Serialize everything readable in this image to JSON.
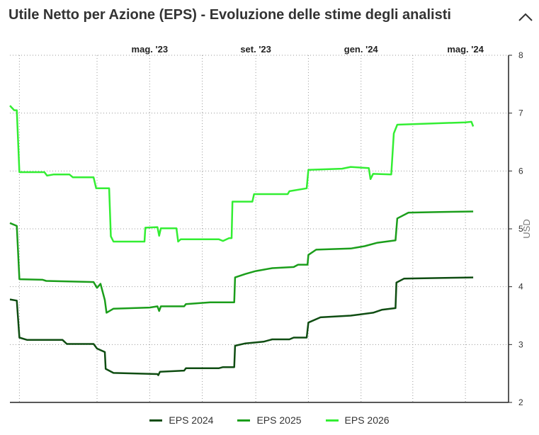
{
  "header": {
    "title": "Utile Netto per Azione (EPS) - Evoluzione delle stime degli analisti"
  },
  "icons": {
    "collapse": "chevron-up-icon"
  },
  "colors": {
    "grid": "#9a9a9a",
    "axis": "#222222",
    "EPS 2024": "#0f4d12",
    "EPS 2025": "#1b9e1b",
    "EPS 2026": "#33ee33"
  },
  "chart_data": {
    "type": "line",
    "xlabel": "",
    "ylabel": "USD",
    "ylim": [
      2,
      8
    ],
    "y_ticks": [
      2,
      3,
      4,
      5,
      6,
      7,
      8
    ],
    "x_ticks": [
      {
        "label": "mag. '23",
        "date": "2023-05-01"
      },
      {
        "label": "set. '23",
        "date": "2023-09-01"
      },
      {
        "label": "gen. '24",
        "date": "2024-01-01"
      },
      {
        "label": "mag. '24",
        "date": "2024-05-01"
      }
    ],
    "xlim": [
      "2022-11-20",
      "2024-06-20"
    ],
    "x_axis_position": "top",
    "y_axis_position": "right",
    "grid": true,
    "legend": "bottom",
    "series": [
      {
        "name": "EPS 2024",
        "points": [
          [
            "2022-11-20",
            3.78
          ],
          [
            "2022-11-28",
            3.76
          ],
          [
            "2022-12-01",
            3.12
          ],
          [
            "2022-12-10",
            3.08
          ],
          [
            "2023-01-20",
            3.08
          ],
          [
            "2023-01-25",
            3.01
          ],
          [
            "2023-02-25",
            3.01
          ],
          [
            "2023-03-01",
            2.93
          ],
          [
            "2023-03-10",
            2.87
          ],
          [
            "2023-03-11",
            2.58
          ],
          [
            "2023-03-20",
            2.51
          ],
          [
            "2023-05-10",
            2.49
          ],
          [
            "2023-05-11",
            2.47
          ],
          [
            "2023-05-13",
            2.53
          ],
          [
            "2023-06-10",
            2.55
          ],
          [
            "2023-06-12",
            2.59
          ],
          [
            "2023-07-20",
            2.59
          ],
          [
            "2023-07-25",
            2.61
          ],
          [
            "2023-08-07",
            2.61
          ],
          [
            "2023-08-08",
            2.98
          ],
          [
            "2023-08-20",
            3.02
          ],
          [
            "2023-09-10",
            3.05
          ],
          [
            "2023-09-20",
            3.09
          ],
          [
            "2023-10-10",
            3.09
          ],
          [
            "2023-10-15",
            3.12
          ],
          [
            "2023-10-30",
            3.12
          ],
          [
            "2023-11-01",
            3.38
          ],
          [
            "2023-11-15",
            3.47
          ],
          [
            "2023-12-20",
            3.5
          ],
          [
            "2024-01-15",
            3.55
          ],
          [
            "2024-01-25",
            3.6
          ],
          [
            "2024-02-10",
            3.63
          ],
          [
            "2024-02-11",
            4.07
          ],
          [
            "2024-02-20",
            4.14
          ],
          [
            "2024-04-01",
            4.15
          ],
          [
            "2024-05-10",
            4.16
          ]
        ]
      },
      {
        "name": "EPS 2025",
        "points": [
          [
            "2022-11-20",
            5.1
          ],
          [
            "2022-11-28",
            5.05
          ],
          [
            "2022-12-01",
            4.13
          ],
          [
            "2022-12-28",
            4.12
          ],
          [
            "2023-01-01",
            4.1
          ],
          [
            "2023-02-25",
            4.08
          ],
          [
            "2023-03-01",
            3.98
          ],
          [
            "2023-03-05",
            4.05
          ],
          [
            "2023-03-10",
            3.77
          ],
          [
            "2023-03-12",
            3.55
          ],
          [
            "2023-03-20",
            3.62
          ],
          [
            "2023-05-01",
            3.64
          ],
          [
            "2023-05-10",
            3.66
          ],
          [
            "2023-05-12",
            3.58
          ],
          [
            "2023-05-14",
            3.66
          ],
          [
            "2023-06-10",
            3.66
          ],
          [
            "2023-06-12",
            3.7
          ],
          [
            "2023-07-10",
            3.73
          ],
          [
            "2023-08-07",
            3.73
          ],
          [
            "2023-08-08",
            4.16
          ],
          [
            "2023-08-20",
            4.22
          ],
          [
            "2023-09-01",
            4.27
          ],
          [
            "2023-09-20",
            4.32
          ],
          [
            "2023-10-15",
            4.34
          ],
          [
            "2023-10-20",
            4.38
          ],
          [
            "2023-10-31",
            4.38
          ],
          [
            "2023-11-01",
            4.55
          ],
          [
            "2023-11-10",
            4.64
          ],
          [
            "2023-12-20",
            4.66
          ],
          [
            "2024-01-05",
            4.7
          ],
          [
            "2024-01-20",
            4.76
          ],
          [
            "2024-02-10",
            4.8
          ],
          [
            "2024-02-12",
            5.18
          ],
          [
            "2024-02-25",
            5.28
          ],
          [
            "2024-04-01",
            5.29
          ],
          [
            "2024-05-10",
            5.3
          ]
        ]
      },
      {
        "name": "EPS 2026",
        "points": [
          [
            "2022-11-20",
            7.13
          ],
          [
            "2022-11-25",
            7.05
          ],
          [
            "2022-11-28",
            7.05
          ],
          [
            "2022-12-01",
            5.98
          ],
          [
            "2022-12-30",
            5.98
          ],
          [
            "2023-01-02",
            5.92
          ],
          [
            "2023-01-10",
            5.94
          ],
          [
            "2023-01-28",
            5.94
          ],
          [
            "2023-02-01",
            5.89
          ],
          [
            "2023-02-25",
            5.89
          ],
          [
            "2023-02-28",
            5.7
          ],
          [
            "2023-03-15",
            5.7
          ],
          [
            "2023-03-17",
            4.87
          ],
          [
            "2023-03-20",
            4.78
          ],
          [
            "2023-04-25",
            4.78
          ],
          [
            "2023-04-26",
            5.02
          ],
          [
            "2023-05-10",
            5.03
          ],
          [
            "2023-05-12",
            4.88
          ],
          [
            "2023-05-14",
            5.01
          ],
          [
            "2023-06-01",
            5.01
          ],
          [
            "2023-06-03",
            4.78
          ],
          [
            "2023-06-06",
            4.82
          ],
          [
            "2023-07-20",
            4.82
          ],
          [
            "2023-07-25",
            4.79
          ],
          [
            "2023-08-01",
            4.84
          ],
          [
            "2023-08-04",
            4.84
          ],
          [
            "2023-08-05",
            5.47
          ],
          [
            "2023-08-28",
            5.47
          ],
          [
            "2023-08-30",
            5.6
          ],
          [
            "2023-10-08",
            5.6
          ],
          [
            "2023-10-10",
            5.65
          ],
          [
            "2023-10-30",
            5.7
          ],
          [
            "2023-11-01",
            6.02
          ],
          [
            "2023-12-10",
            6.04
          ],
          [
            "2023-12-20",
            6.07
          ],
          [
            "2024-01-10",
            6.05
          ],
          [
            "2024-01-12",
            5.86
          ],
          [
            "2024-01-15",
            5.95
          ],
          [
            "2024-02-05",
            5.94
          ],
          [
            "2024-02-08",
            6.65
          ],
          [
            "2024-02-12",
            6.8
          ],
          [
            "2024-05-01",
            6.84
          ],
          [
            "2024-05-08",
            6.85
          ],
          [
            "2024-05-10",
            6.77
          ]
        ]
      }
    ]
  }
}
